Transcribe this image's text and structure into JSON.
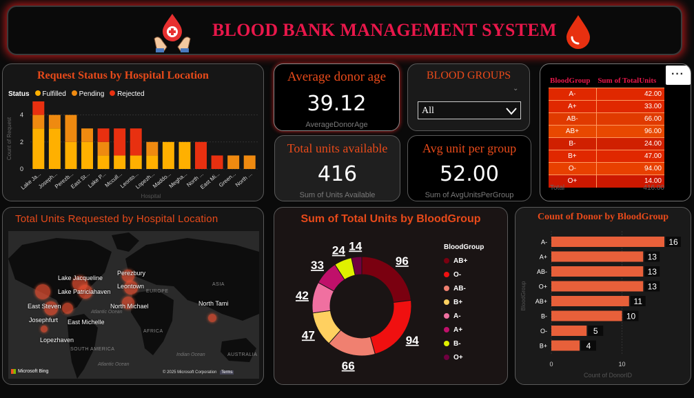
{
  "header": {
    "title": "BLOOD BANK MANAGEMENT SYSTEM"
  },
  "request_status": {
    "title": "Request Status by Hospital Location",
    "legend_label": "Status",
    "legend": [
      {
        "name": "Fulfilled",
        "color": "#ffb000"
      },
      {
        "name": "Pending",
        "color": "#ef8a10"
      },
      {
        "name": "Rejected",
        "color": "#e83010"
      }
    ],
    "chart_data": {
      "type": "bar",
      "stacked": true,
      "categories": [
        "Lake Ja...",
        "Joseph...",
        "Perezb...",
        "East St...",
        "Lake P...",
        "Mccull...",
        "Leonto...",
        "Lopezh...",
        "Maddo...",
        "Megha...",
        "North ...",
        "East Mi...",
        "Green...",
        "North ..."
      ],
      "series": [
        {
          "name": "Fulfilled",
          "values": [
            3,
            3,
            2,
            2,
            1,
            1,
            1,
            1,
            2,
            2,
            0,
            0,
            0,
            0
          ]
        },
        {
          "name": "Pending",
          "values": [
            1,
            1,
            2,
            1,
            1,
            0,
            0,
            1,
            0,
            0,
            0,
            0,
            1,
            1
          ]
        },
        {
          "name": "Rejected",
          "values": [
            1,
            0,
            0,
            0,
            1,
            2,
            2,
            0,
            0,
            0,
            2,
            1,
            0,
            0
          ]
        }
      ],
      "ylim": [
        0,
        5
      ],
      "yticks": [
        "0",
        "2",
        "4"
      ],
      "ylabel": "Count of Request",
      "xlabel": "Hospital"
    }
  },
  "kpis": {
    "avg_donor_age": {
      "title": "Average donor age",
      "value": "39.12",
      "label": "AverageDonorAge"
    },
    "total_units": {
      "title": "Total units available",
      "value": "416",
      "label": "Sum of Units Available"
    },
    "avg_unit_group": {
      "title": "Avg unit per group",
      "value": "52.00",
      "label": "Sum of AvgUnitsPerGroup"
    }
  },
  "slicer": {
    "title": "BLOOD GROUPS",
    "value": "All"
  },
  "bg_table": {
    "columns": [
      "BloodGroup",
      "Sum of TotalUnits"
    ],
    "rows": [
      {
        "group": "A-",
        "value": "42.00",
        "color": "#e02800"
      },
      {
        "group": "A+",
        "value": "33.00",
        "color": "#e02800"
      },
      {
        "group": "AB-",
        "value": "66.00",
        "color": "#e03a00"
      },
      {
        "group": "AB+",
        "value": "96.00",
        "color": "#e84800"
      },
      {
        "group": "B-",
        "value": "24.00",
        "color": "#d02000"
      },
      {
        "group": "B+",
        "value": "47.00",
        "color": "#e02800"
      },
      {
        "group": "O-",
        "value": "94.00",
        "color": "#e84000"
      },
      {
        "group": "O+",
        "value": "14.00",
        "color": "#cc1800"
      }
    ],
    "total_label": "Total",
    "total_value": "416.00"
  },
  "map": {
    "title": "Total Units Requested by Hospital Location",
    "locations": [
      "Perezbury",
      "Lake Jacqueline",
      "Leontown",
      "Lake Patriciahaven",
      "East Steven",
      "North Michael",
      "North Tami",
      "Josephfurt",
      "East Michelle",
      "Lopezhaven"
    ],
    "regions": [
      "ASIA",
      "EUROPE",
      "AFRICA",
      "SOUTH AMERICA",
      "AUSTRALIA"
    ],
    "oceans": [
      "Atlantic Ocean",
      "Indian Ocean",
      "Atlantic Ocean"
    ],
    "provider": "Microsoft Bing",
    "copyright": "© 2025 Microsoft Corporation",
    "terms": "Terms"
  },
  "donut": {
    "title": "Sum of Total Units by BloodGroup",
    "legend_title": "BloodGroup",
    "chart_data": {
      "type": "pie",
      "donut": true,
      "slices": [
        {
          "label": "AB+",
          "value": 96,
          "color": "#7a0010"
        },
        {
          "label": "O-",
          "value": 94,
          "color": "#f01010"
        },
        {
          "label": "AB-",
          "value": 66,
          "color": "#f08070"
        },
        {
          "label": "B+",
          "value": 47,
          "color": "#ffd060"
        },
        {
          "label": "A-",
          "value": 42,
          "color": "#f070a0"
        },
        {
          "label": "A+",
          "value": 33,
          "color": "#c0106a"
        },
        {
          "label": "B-",
          "value": 24,
          "color": "#e0f000"
        },
        {
          "label": "O+",
          "value": 14,
          "color": "#700040"
        }
      ]
    }
  },
  "donor_count": {
    "title": "Count of Donor by BloodGroup",
    "chart_data": {
      "type": "bar",
      "orientation": "horizontal",
      "categories": [
        "A-",
        "A+",
        "AB-",
        "O+",
        "AB+",
        "B-",
        "O-",
        "B+"
      ],
      "values": [
        16,
        13,
        13,
        13,
        11,
        10,
        5,
        4
      ],
      "xlim": [
        0,
        16
      ],
      "xticks": [
        "0",
        "10"
      ],
      "xlabel": "Count of DonorID",
      "ylabel": "BloodGroup",
      "color": "#e8603a"
    }
  },
  "menu_icon": "more-options-icon"
}
